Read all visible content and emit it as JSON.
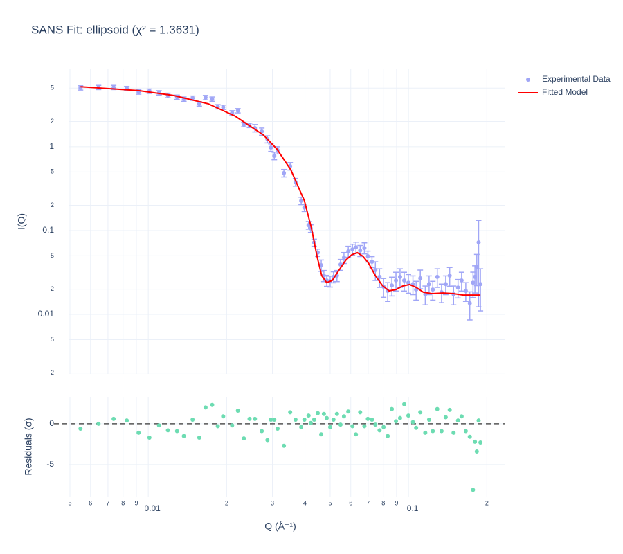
{
  "chart_data": [
    {
      "type": "line",
      "title": "SANS Fit: ellipsoid (χ² = 1.3631)",
      "y_label": "I(Q)",
      "log_y": true,
      "grid": true,
      "legend": "right",
      "ylim": [
        0.00195,
        8.4
      ],
      "yticks": [
        5,
        2,
        1,
        {
          "value": 0.5,
          "label": "5"
        },
        {
          "value": 0.2,
          "label": "2"
        },
        0.1,
        {
          "value": 0.05,
          "label": "5"
        },
        {
          "value": 0.02,
          "label": "2"
        },
        0.01,
        {
          "value": 0.005,
          "label": "5"
        },
        {
          "value": 0.002,
          "label": "2"
        }
      ],
      "series": [
        {
          "name": "Experimental Data",
          "color": "#a0a6f6",
          "mode": "markers",
          "x": [
            0.00549,
            0.00644,
            0.00736,
            0.00827,
            0.00918,
            0.0101,
            0.011,
            0.0119,
            0.0129,
            0.0137,
            0.0148,
            0.0157,
            0.0166,
            0.0176,
            0.0185,
            0.0194,
            0.021,
            0.0221,
            0.0233,
            0.0245,
            0.0257,
            0.0273,
            0.0287,
            0.0296,
            0.0305,
            0.0314,
            0.0332,
            0.0351,
            0.0368,
            0.0387,
            0.0398,
            0.0413,
            0.0421,
            0.0434,
            0.0448,
            0.0462,
            0.0473,
            0.0485,
            0.05,
            0.0515,
            0.0531,
            0.0548,
            0.0565,
            0.0587,
            0.0609,
            0.0628,
            0.0652,
            0.0677,
            0.0698,
            0.0724,
            0.0746,
            0.0774,
            0.0802,
            0.0832,
            0.0863,
            0.0895,
            0.0928,
            0.0963,
            0.0999,
            0.104,
            0.107,
            0.111,
            0.116,
            0.12,
            0.124,
            0.129,
            0.134,
            0.139,
            0.144,
            0.149,
            0.155,
            0.16,
            0.166,
            0.172,
            0.177,
            0.18,
            0.183,
            0.186,
            0.189
          ],
          "values": [
            5.04,
            5.1,
            5.1,
            4.95,
            4.5,
            4.6,
            4.4,
            4.1,
            3.9,
            3.7,
            3.8,
            3.25,
            3.86,
            3.7,
            3.0,
            2.96,
            2.54,
            2.69,
            1.84,
            1.8,
            1.67,
            1.52,
            1.23,
            0.98,
            0.78,
            0.91,
            0.486,
            0.587,
            0.379,
            0.227,
            0.188,
            0.116,
            0.106,
            0.072,
            0.0546,
            0.0386,
            0.029,
            0.0254,
            0.0249,
            0.028,
            0.029,
            0.0394,
            0.0476,
            0.0565,
            0.0597,
            0.0632,
            0.0577,
            0.062,
            0.0495,
            0.0425,
            0.0339,
            0.028,
            0.0214,
            0.0191,
            0.0222,
            0.0254,
            0.028,
            0.0254,
            0.0239,
            0.023,
            0.0198,
            0.027,
            0.0174,
            0.023,
            0.0198,
            0.028,
            0.0184,
            0.023,
            0.029,
            0.0174,
            0.0209,
            0.0254,
            0.0191,
            0.0136,
            0.0239,
            0.028,
            0.037,
            0.0723,
            0.023
          ],
          "errors": [
            0.3,
            0.3,
            0.3,
            0.3,
            0.27,
            0.28,
            0.26,
            0.25,
            0.23,
            0.22,
            0.23,
            0.2,
            0.23,
            0.22,
            0.18,
            0.18,
            0.15,
            0.16,
            0.11,
            0.11,
            0.17,
            0.15,
            0.12,
            0.1,
            0.08,
            0.09,
            0.05,
            0.06,
            0.04,
            0.023,
            0.019,
            0.012,
            0.011,
            0.007,
            0.0055,
            0.006,
            0.0044,
            0.0038,
            0.0037,
            0.0042,
            0.0044,
            0.0059,
            0.0071,
            0.0085,
            0.009,
            0.0095,
            0.0087,
            0.0093,
            0.0074,
            0.0064,
            0.0085,
            0.007,
            0.0054,
            0.0048,
            0.0056,
            0.0064,
            0.007,
            0.0064,
            0.006,
            0.0058,
            0.005,
            0.0068,
            0.0044,
            0.0058,
            0.005,
            0.007,
            0.0046,
            0.0058,
            0.0073,
            0.0044,
            0.0052,
            0.0064,
            0.0048,
            0.005,
            0.008,
            0.01,
            0.015,
            0.06,
            0.012
          ]
        },
        {
          "name": "Fitted Model",
          "color": "#ff0000",
          "mode": "lines",
          "x": [
            0.00549,
            0.00918,
            0.0125,
            0.017,
            0.0216,
            0.0277,
            0.0312,
            0.0353,
            0.0398,
            0.0424,
            0.0445,
            0.0464,
            0.0485,
            0.0509,
            0.0541,
            0.0576,
            0.0605,
            0.0636,
            0.0668,
            0.0702,
            0.0746,
            0.0793,
            0.0842,
            0.0895,
            0.095,
            0.101,
            0.107,
            0.114,
            0.123,
            0.136,
            0.149,
            0.162,
            0.189
          ],
          "values": [
            5.2,
            4.67,
            4.09,
            3.25,
            2.31,
            1.38,
            0.94,
            0.53,
            0.227,
            0.106,
            0.0495,
            0.029,
            0.0239,
            0.0254,
            0.0338,
            0.0449,
            0.0514,
            0.0545,
            0.0495,
            0.0409,
            0.029,
            0.0222,
            0.0191,
            0.0198,
            0.0218,
            0.0227,
            0.021,
            0.0184,
            0.0177,
            0.018,
            0.0177,
            0.017,
            0.017
          ]
        }
      ]
    },
    {
      "type": "scatter",
      "y_label": "Residuals (σ)",
      "x_label": "Q (Å⁻¹)",
      "log_x": true,
      "grid": true,
      "color": "#6ddcb2",
      "hline": 0,
      "xlim": [
        0.00497,
        0.2355
      ],
      "xticks": [
        {
          "value": 0.005,
          "label": "5"
        },
        {
          "value": 0.006,
          "label": "6"
        },
        {
          "value": 0.007,
          "label": "7"
        },
        {
          "value": 0.008,
          "label": "8"
        },
        {
          "value": 0.009,
          "label": "9"
        },
        0.01,
        {
          "value": 0.02,
          "label": "2"
        },
        {
          "value": 0.03,
          "label": "3"
        },
        {
          "value": 0.04,
          "label": "4"
        },
        {
          "value": 0.05,
          "label": "5"
        },
        {
          "value": 0.06,
          "label": "6"
        },
        {
          "value": 0.07,
          "label": "7"
        },
        {
          "value": 0.08,
          "label": "8"
        },
        {
          "value": 0.09,
          "label": "9"
        },
        0.1,
        {
          "value": 0.2,
          "label": "2"
        }
      ],
      "ylim": [
        -9,
        3.3
      ],
      "yticks": [
        -5,
        0
      ],
      "x": [
        0.00549,
        0.00644,
        0.00736,
        0.00827,
        0.00918,
        0.0101,
        0.011,
        0.0119,
        0.0129,
        0.0137,
        0.0148,
        0.0157,
        0.0166,
        0.0176,
        0.0185,
        0.0194,
        0.021,
        0.0221,
        0.0233,
        0.0245,
        0.0257,
        0.0273,
        0.0287,
        0.0296,
        0.0305,
        0.0314,
        0.0332,
        0.0351,
        0.0368,
        0.0387,
        0.0398,
        0.0413,
        0.0421,
        0.0434,
        0.0448,
        0.0462,
        0.0473,
        0.0485,
        0.05,
        0.0515,
        0.0531,
        0.0548,
        0.0565,
        0.0587,
        0.0609,
        0.0628,
        0.0652,
        0.0677,
        0.0698,
        0.0724,
        0.0746,
        0.0774,
        0.0802,
        0.0832,
        0.0863,
        0.0895,
        0.0928,
        0.0963,
        0.0999,
        0.104,
        0.107,
        0.111,
        0.116,
        0.12,
        0.124,
        0.129,
        0.134,
        0.139,
        0.144,
        0.149,
        0.155,
        0.16,
        0.166,
        0.172,
        0.177,
        0.18,
        0.183,
        0.186,
        0.189
      ],
      "values": [
        -0.6,
        0,
        0.6,
        0.4,
        -1.1,
        -1.7,
        -0.2,
        -0.8,
        -0.9,
        -1.5,
        0.5,
        -1.7,
        2.0,
        2.3,
        -0.3,
        0.9,
        -0.2,
        1.6,
        -1.8,
        0.6,
        0.6,
        -0.9,
        -2.0,
        0.5,
        0.5,
        -0.6,
        -2.7,
        1.4,
        0.5,
        -0.4,
        0.5,
        1.0,
        0.1,
        0.5,
        1.3,
        -1.3,
        1.2,
        0.7,
        -0.4,
        0.5,
        1.2,
        -0.1,
        0.9,
        1.5,
        -0.3,
        -1.3,
        1.4,
        -0.3,
        0.6,
        0.5,
        -0.1,
        -0.8,
        -0.4,
        -1.5,
        1.8,
        0.3,
        0.7,
        2.4,
        1.0,
        0.2,
        -0.5,
        1.4,
        -1.1,
        0.5,
        -0.9,
        1.8,
        -0.9,
        0.8,
        1.7,
        -1.1,
        0.4,
        0.9,
        -0.9,
        -1.6,
        -8.1,
        -2.2,
        -3.4,
        0.4,
        -2.3
      ]
    }
  ]
}
